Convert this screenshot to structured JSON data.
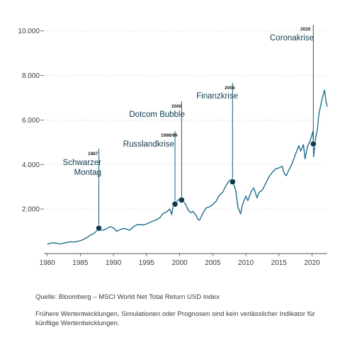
{
  "chart_data": {
    "type": "line",
    "xlim": [
      1979.5,
      2022.3
    ],
    "ylim": [
      0,
      10500
    ],
    "x_ticks": [
      1980,
      1985,
      1990,
      1995,
      2000,
      2005,
      2010,
      2015,
      2020
    ],
    "x_tick_labels": [
      "1980",
      "1985",
      "1990",
      "1995",
      "2000",
      "2005",
      "2010",
      "2015",
      "2020"
    ],
    "y_ticks": [
      2000,
      4000,
      6000,
      8000,
      10000
    ],
    "y_tick_labels": [
      "2.000",
      "4.000",
      "6.000",
      "8.000",
      "10.000"
    ],
    "grid": "horizontal dotted",
    "series": [
      {
        "color": "#1f6f8b",
        "points": [
          [
            1980.0,
            420
          ],
          [
            1980.5,
            470
          ],
          [
            1981.0,
            480
          ],
          [
            1981.5,
            460
          ],
          [
            1982.0,
            430
          ],
          [
            1982.5,
            470
          ],
          [
            1983.0,
            500
          ],
          [
            1983.5,
            530
          ],
          [
            1984.0,
            520
          ],
          [
            1984.5,
            540
          ],
          [
            1985.0,
            580
          ],
          [
            1985.5,
            640
          ],
          [
            1986.0,
            720
          ],
          [
            1986.5,
            830
          ],
          [
            1987.0,
            900
          ],
          [
            1987.5,
            1020
          ],
          [
            1987.8,
            1140
          ],
          [
            1988.0,
            1030
          ],
          [
            1988.5,
            1060
          ],
          [
            1989.0,
            1120
          ],
          [
            1989.5,
            1210
          ],
          [
            1990.0,
            1160
          ],
          [
            1990.5,
            1000
          ],
          [
            1991.0,
            1080
          ],
          [
            1991.5,
            1130
          ],
          [
            1992.0,
            1100
          ],
          [
            1992.5,
            1050
          ],
          [
            1993.0,
            1200
          ],
          [
            1993.5,
            1290
          ],
          [
            1994.0,
            1300
          ],
          [
            1994.5,
            1290
          ],
          [
            1995.0,
            1330
          ],
          [
            1995.5,
            1400
          ],
          [
            1996.0,
            1460
          ],
          [
            1996.5,
            1520
          ],
          [
            1997.0,
            1610
          ],
          [
            1997.5,
            1800
          ],
          [
            1998.0,
            1870
          ],
          [
            1998.5,
            2000
          ],
          [
            1998.8,
            1750
          ],
          [
            1999.0,
            2100
          ],
          [
            1999.5,
            2300
          ],
          [
            2000.0,
            2500
          ],
          [
            2000.2,
            2420
          ],
          [
            2000.5,
            2380
          ],
          [
            2001.0,
            2150
          ],
          [
            2001.3,
            1950
          ],
          [
            2001.7,
            1840
          ],
          [
            2002.0,
            1900
          ],
          [
            2002.5,
            1700
          ],
          [
            2002.8,
            1520
          ],
          [
            2003.0,
            1500
          ],
          [
            2003.5,
            1800
          ],
          [
            2004.0,
            2050
          ],
          [
            2004.5,
            2100
          ],
          [
            2005.0,
            2200
          ],
          [
            2005.5,
            2350
          ],
          [
            2006.0,
            2620
          ],
          [
            2006.5,
            2750
          ],
          [
            2007.0,
            3050
          ],
          [
            2007.5,
            3280
          ],
          [
            2007.8,
            3350
          ],
          [
            2008.2,
            3100
          ],
          [
            2008.5,
            2800
          ],
          [
            2008.8,
            2100
          ],
          [
            2009.2,
            1780
          ],
          [
            2009.5,
            2200
          ],
          [
            2010.0,
            2580
          ],
          [
            2010.3,
            2380
          ],
          [
            2010.8,
            2780
          ],
          [
            2011.2,
            2950
          ],
          [
            2011.7,
            2500
          ],
          [
            2012.0,
            2750
          ],
          [
            2012.5,
            2850
          ],
          [
            2013.0,
            3150
          ],
          [
            2013.5,
            3450
          ],
          [
            2014.0,
            3650
          ],
          [
            2014.5,
            3800
          ],
          [
            2015.0,
            3850
          ],
          [
            2015.5,
            3920
          ],
          [
            2015.8,
            3600
          ],
          [
            2016.1,
            3500
          ],
          [
            2016.5,
            3750
          ],
          [
            2017.0,
            4050
          ],
          [
            2017.5,
            4450
          ],
          [
            2018.0,
            4850
          ],
          [
            2018.3,
            4600
          ],
          [
            2018.7,
            4900
          ],
          [
            2018.95,
            4250
          ],
          [
            2019.3,
            4800
          ],
          [
            2019.7,
            5050
          ],
          [
            2020.0,
            5350
          ],
          [
            2020.15,
            5500
          ],
          [
            2020.25,
            4350
          ],
          [
            2020.4,
            4800
          ],
          [
            2020.6,
            5300
          ],
          [
            2020.8,
            5550
          ],
          [
            2021.0,
            6200
          ],
          [
            2021.3,
            6650
          ],
          [
            2021.6,
            7050
          ],
          [
            2021.9,
            7350
          ],
          [
            2022.1,
            6850
          ],
          [
            2022.3,
            6600
          ]
        ]
      }
    ],
    "annotations": [
      {
        "year": "1987",
        "label_lines": [
          "Schwarzer",
          "Montag"
        ],
        "x": 1987.8
      },
      {
        "year": "1998/99",
        "label_lines": [
          "Russlandkrise"
        ],
        "x": 1999.3
      },
      {
        "year": "2000",
        "label_lines": [
          "Dotcom Bubble"
        ],
        "x": 2000.3
      },
      {
        "year": "2008",
        "label_lines": [
          "Finanzkrise"
        ],
        "x": 2008.0
      },
      {
        "year": "2020",
        "label_lines": [
          "Coronakrise"
        ],
        "x": 2020.2
      }
    ]
  },
  "footer": {
    "source": "Quelle: Bloomberg – MSCI World Net Total Return USD Index",
    "disclaimer": "Frühere Wertentwicklungen, Simulationen oder Prognosen sind kein verlässlicher Indikator für künftige Wertentwicklungen."
  },
  "colors": {
    "line": "#1f6f8b",
    "marker_fill": "#0e3a4d",
    "text": "#3c3c3c",
    "grid": "#bdbdbd",
    "axis": "#555555"
  }
}
